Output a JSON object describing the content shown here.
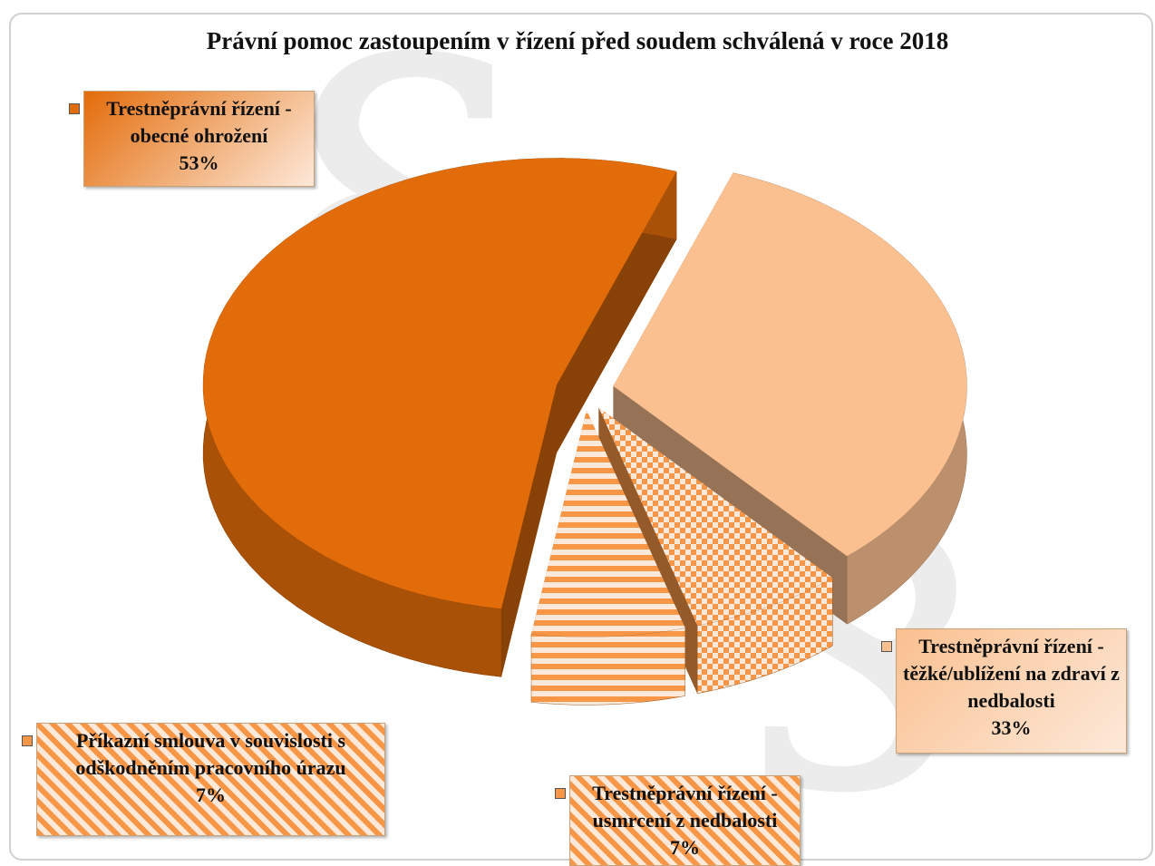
{
  "chart_data": {
    "type": "pie3d",
    "title": "Právní pomoc zastoupením v řízení před soudem schválená v roce 2018",
    "categories": [
      "Trestněprávní řízení - obecné ohrožení",
      "Trestněprávní řízení - těžké/ublížení na zdraví z nedbalosti",
      "Trestněprávní řízení - usmrcení z nedbalosti",
      "Příkazní smlouva v souvislosti s odškodněním pracovního úrazu"
    ],
    "values": [
      53,
      33,
      7,
      7
    ],
    "value_labels": [
      "53%",
      "33%",
      "7%",
      "7%"
    ],
    "colors": [
      "#e36c0a",
      "#fac090",
      "#f79646",
      "#f79646"
    ],
    "fill_styles": [
      "solid",
      "solid",
      "checkered",
      "striped"
    ]
  }
}
